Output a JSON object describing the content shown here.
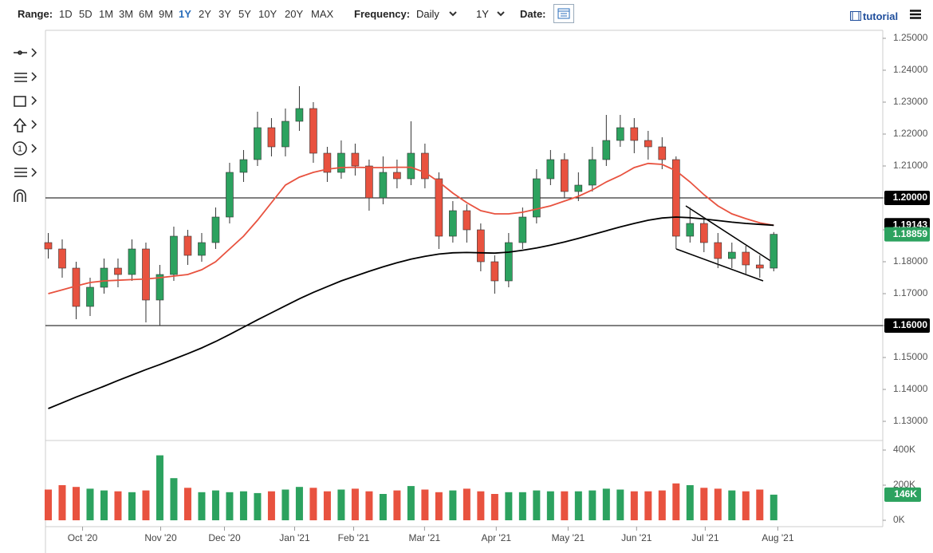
{
  "toolbar": {
    "range_label": "Range:",
    "ranges": [
      "1D",
      "5D",
      "1M",
      "3M",
      "6M",
      "9M",
      "1Y",
      "2Y",
      "3Y",
      "5Y",
      "10Y",
      "20Y",
      "MAX"
    ],
    "active_range": "1Y",
    "frequency_label": "Frequency:",
    "frequency": "Daily",
    "period": "1Y",
    "date_label": "Date:",
    "tutorial": "tutorial"
  },
  "chart_data": [
    {
      "type": "candlestick",
      "categories": [
        null,
        null,
        null,
        null,
        null,
        null,
        null,
        null,
        null,
        null,
        null,
        null,
        null,
        null,
        null,
        null,
        null,
        null,
        null,
        null,
        null,
        null,
        null,
        null,
        null,
        null,
        null,
        null,
        null,
        null,
        null,
        null,
        null,
        null,
        null,
        null,
        null,
        null,
        null,
        null,
        null,
        null,
        null,
        null,
        null,
        null,
        null,
        null,
        null,
        null,
        null,
        null,
        null
      ],
      "open": [
        1.186,
        1.184,
        1.178,
        1.166,
        1.172,
        1.178,
        1.176,
        1.184,
        1.168,
        1.176,
        1.188,
        1.182,
        1.186,
        1.194,
        1.208,
        1.212,
        1.222,
        1.216,
        1.224,
        1.228,
        1.214,
        1.208,
        1.214,
        1.21,
        1.2,
        1.208,
        1.206,
        1.214,
        1.206,
        1.188,
        1.196,
        1.19,
        1.18,
        1.174,
        1.186,
        1.194,
        1.206,
        1.212,
        1.202,
        1.204,
        1.212,
        1.218,
        1.222,
        1.218,
        1.216,
        1.212,
        1.188,
        1.192,
        1.186,
        1.181,
        1.183,
        1.179,
        1.178
      ],
      "high": [
        1.189,
        1.187,
        1.18,
        1.175,
        1.181,
        1.181,
        1.187,
        1.186,
        1.179,
        1.191,
        1.19,
        1.189,
        1.197,
        1.211,
        1.215,
        1.227,
        1.225,
        1.228,
        1.235,
        1.23,
        1.216,
        1.218,
        1.217,
        1.212,
        1.213,
        1.212,
        1.224,
        1.217,
        1.208,
        1.199,
        1.198,
        1.192,
        1.182,
        1.189,
        1.197,
        1.209,
        1.215,
        1.214,
        1.208,
        1.216,
        1.226,
        1.226,
        1.225,
        1.221,
        1.219,
        1.213,
        1.197,
        1.194,
        1.189,
        1.186,
        1.185,
        1.182,
        1.1893
      ],
      "low": [
        1.181,
        1.175,
        1.162,
        1.163,
        1.17,
        1.172,
        1.174,
        1.161,
        1.16,
        1.174,
        1.179,
        1.18,
        1.184,
        1.192,
        1.205,
        1.21,
        1.213,
        1.213,
        1.221,
        1.211,
        1.205,
        1.206,
        1.207,
        1.196,
        1.198,
        1.203,
        1.204,
        1.203,
        1.184,
        1.186,
        1.186,
        1.177,
        1.17,
        1.172,
        1.184,
        1.192,
        1.204,
        1.2,
        1.199,
        1.202,
        1.21,
        1.216,
        1.214,
        1.212,
        1.209,
        1.184,
        1.186,
        1.183,
        1.178,
        1.178,
        1.176,
        1.175,
        1.177
      ],
      "close": [
        1.184,
        1.178,
        1.166,
        1.172,
        1.178,
        1.176,
        1.184,
        1.168,
        1.176,
        1.188,
        1.182,
        1.186,
        1.194,
        1.208,
        1.212,
        1.222,
        1.216,
        1.224,
        1.228,
        1.214,
        1.208,
        1.214,
        1.21,
        1.2,
        1.208,
        1.206,
        1.214,
        1.206,
        1.188,
        1.196,
        1.19,
        1.18,
        1.174,
        1.186,
        1.194,
        1.206,
        1.212,
        1.202,
        1.204,
        1.212,
        1.218,
        1.222,
        1.218,
        1.216,
        1.212,
        1.188,
        1.192,
        1.186,
        1.181,
        1.183,
        1.179,
        1.178,
        1.1886
      ],
      "up_color": "#2ca25f",
      "down_color": "#e8523f",
      "lines": [
        {
          "color": "#e8523f",
          "values": [
            1.17,
            1.1712,
            1.1724,
            1.1735,
            1.174,
            1.1742,
            1.1744,
            1.1746,
            1.175,
            1.1755,
            1.176,
            1.1775,
            1.18,
            1.184,
            1.188,
            1.193,
            1.1985,
            1.204,
            1.2065,
            1.208,
            1.209,
            1.2095,
            1.2096,
            1.2095,
            1.2095,
            1.2096,
            1.2096,
            1.208,
            1.205,
            1.2015,
            1.1985,
            1.196,
            1.195,
            1.195,
            1.1955,
            1.1965,
            1.1975,
            1.199,
            1.2005,
            1.2025,
            1.205,
            1.207,
            1.2095,
            1.2108,
            1.2105,
            1.2085,
            1.205,
            1.201,
            1.1975,
            1.195,
            1.1935,
            1.1922,
            1.1914
          ]
        },
        {
          "color": "#000000",
          "values": [
            1.134,
            1.1358,
            1.1376,
            1.1393,
            1.141,
            1.1428,
            1.1445,
            1.1462,
            1.1478,
            1.1495,
            1.1512,
            1.153,
            1.155,
            1.1572,
            1.1595,
            1.1618,
            1.164,
            1.1662,
            1.1684,
            1.1704,
            1.1722,
            1.174,
            1.1755,
            1.177,
            1.1784,
            1.1797,
            1.1808,
            1.1817,
            1.1824,
            1.1828,
            1.1829,
            1.1828,
            1.1827,
            1.183,
            1.1836,
            1.1843,
            1.1852,
            1.1862,
            1.1873,
            1.1885,
            1.1897,
            1.1909,
            1.192,
            1.193,
            1.1937,
            1.194,
            1.1938,
            1.1934,
            1.1929,
            1.1924,
            1.192,
            1.1917,
            1.19143
          ]
        }
      ],
      "hlines": [
        {
          "value": 1.2,
          "label": "1.20000"
        },
        {
          "value": 1.16,
          "label": "1.16000"
        }
      ],
      "price_labels": [
        {
          "value": 1.19143,
          "label": "1.19143",
          "color": "#000000"
        },
        {
          "value": 1.18859,
          "label": "1.18859",
          "color": "#2ca25f"
        }
      ],
      "xlim": [
        -0.2,
        59.7
      ],
      "ylim": [
        1.1245,
        1.2525
      ],
      "yticks": [
        {
          "value": 1.25,
          "label": "1.25000"
        },
        {
          "value": 1.24,
          "label": "1.24000"
        },
        {
          "value": 1.23,
          "label": "1.23000"
        },
        {
          "value": 1.22,
          "label": "1.22000"
        },
        {
          "value": 1.21,
          "label": "1.21000"
        },
        {
          "value": 1.2,
          "label": "1.20000"
        },
        {
          "value": 1.19,
          "label": "1.19000"
        },
        {
          "value": 1.18,
          "label": "1.18000"
        },
        {
          "value": 1.17,
          "label": "1.17000"
        },
        {
          "value": 1.16,
          "label": "1.16000"
        },
        {
          "value": 1.15,
          "label": "1.15000"
        },
        {
          "value": 1.14,
          "label": "1.14000"
        },
        {
          "value": 1.13,
          "label": "1.13000"
        }
      ]
    },
    {
      "type": "bar",
      "values": [
        175000,
        200000,
        190000,
        180000,
        170000,
        165000,
        160000,
        170000,
        370000,
        240000,
        185000,
        160000,
        170000,
        160000,
        165000,
        155000,
        165000,
        175000,
        190000,
        185000,
        165000,
        175000,
        180000,
        165000,
        150000,
        170000,
        195000,
        175000,
        160000,
        170000,
        180000,
        165000,
        150000,
        160000,
        160000,
        170000,
        165000,
        165000,
        165000,
        170000,
        180000,
        175000,
        165000,
        165000,
        170000,
        210000,
        200000,
        185000,
        180000,
        170000,
        165000,
        175000,
        146000
      ],
      "last_label": {
        "value": 146000,
        "label": "146K"
      },
      "xlim": [
        -0.2,
        59.7
      ],
      "ylim": [
        0,
        450000
      ],
      "yticks": [
        {
          "value": 400000,
          "label": "400K"
        },
        {
          "value": 200000,
          "label": "200K"
        },
        {
          "value": 0,
          "label": "0K"
        }
      ],
      "xticks": [
        {
          "value": 2.46,
          "label": "Oct '20"
        },
        {
          "value": 8.06,
          "label": "Nov '20"
        },
        {
          "value": 12.63,
          "label": "Dec '20"
        },
        {
          "value": 17.66,
          "label": "Jan '21"
        },
        {
          "value": 21.89,
          "label": "Feb '21"
        },
        {
          "value": 26.97,
          "label": "Mar '21"
        },
        {
          "value": 32.11,
          "label": "Apr '21"
        },
        {
          "value": 37.26,
          "label": "May '21"
        },
        {
          "value": 42.17,
          "label": "Jun '21"
        },
        {
          "value": 47.09,
          "label": "Jul '21"
        },
        {
          "value": 52.29,
          "label": "Aug '21"
        }
      ]
    }
  ]
}
